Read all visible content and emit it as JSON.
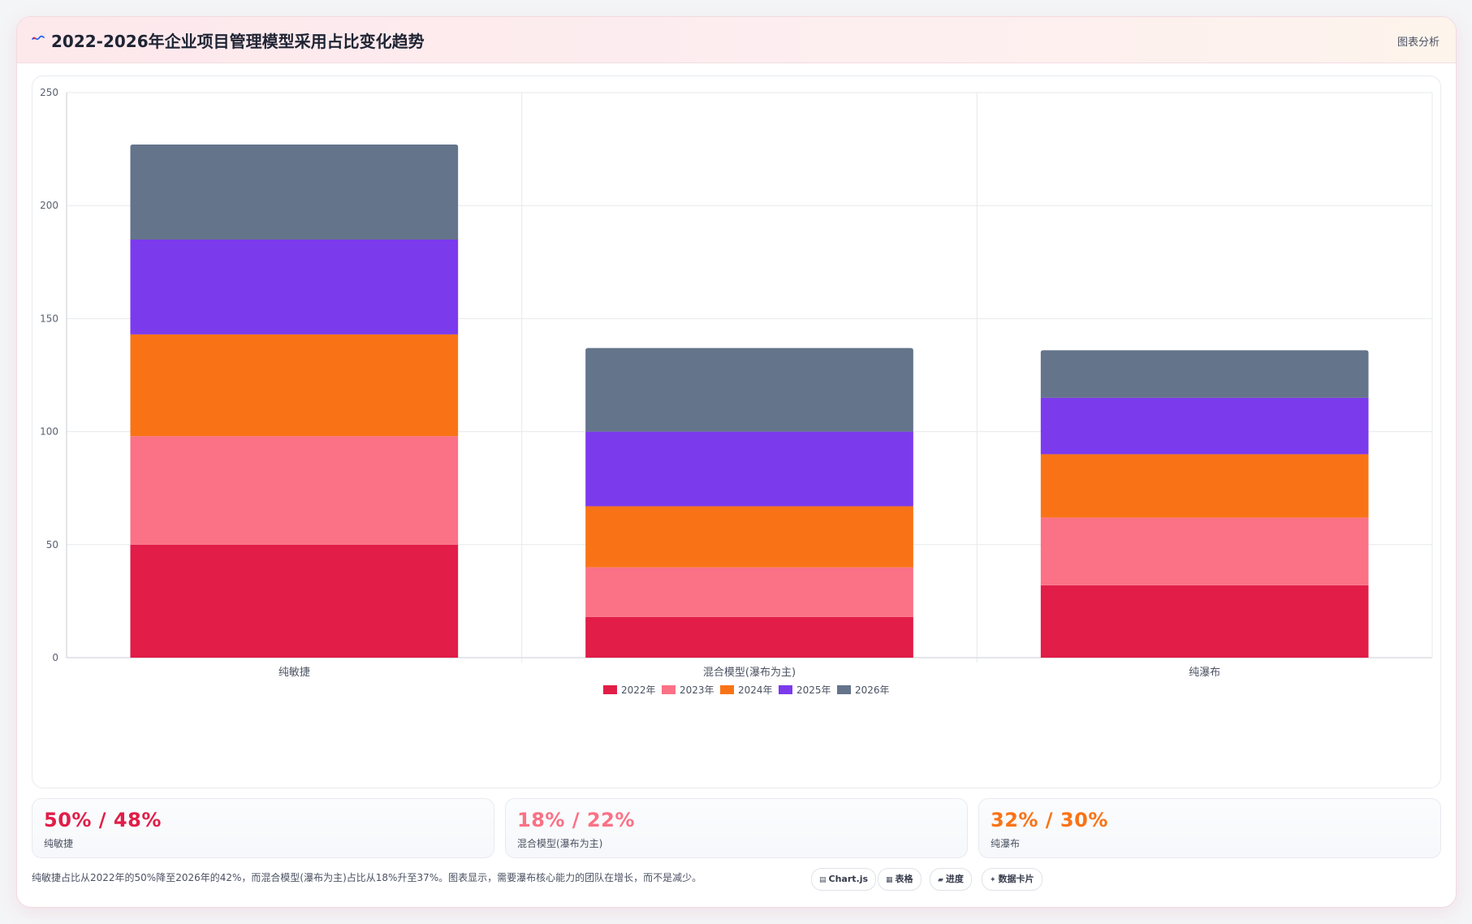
{
  "header": {
    "title": "2022-2026年企业项目管理模型采用占比变化趋势",
    "action_label": "图表分析",
    "icon": "chart-wave-icon"
  },
  "chart_data": {
    "type": "bar",
    "stacked": true,
    "title": "",
    "xlabel": "",
    "ylabel": "",
    "categories": [
      "纯敏捷",
      "混合模型(瀑布为主)",
      "纯瀑布"
    ],
    "ylim": [
      0,
      250
    ],
    "yticks": [
      0,
      50,
      100,
      150,
      200,
      250
    ],
    "grid": true,
    "legend_position": "bottom",
    "series": [
      {
        "name": "2022年",
        "color": "#e11d48",
        "values": [
          50,
          18,
          32
        ]
      },
      {
        "name": "2023年",
        "color": "#fb7185",
        "values": [
          48,
          22,
          30
        ]
      },
      {
        "name": "2024年",
        "color": "#f97316",
        "values": [
          45,
          27,
          28
        ]
      },
      {
        "name": "2025年",
        "color": "#7c3aed",
        "values": [
          42,
          33,
          25
        ]
      },
      {
        "name": "2026年",
        "color": "#64748b",
        "values": [
          42,
          37,
          21
        ]
      }
    ]
  },
  "stats": [
    {
      "value": "50% / 48%",
      "label": "纯敏捷",
      "color": "#e11d48"
    },
    {
      "value": "18% / 22%",
      "label": "混合模型(瀑布为主)",
      "color": "#fb7185"
    },
    {
      "value": "32% / 30%",
      "label": "纯瀑布",
      "color": "#f97316"
    }
  ],
  "footer": {
    "note": "纯敏捷占比从2022年的50%降至2026年的42%，而混合模型(瀑布为主)占比从18%升至37%。图表显示，需要瀑布核心能力的团队在增长，而不是减少。",
    "tags": [
      {
        "icon": "▤",
        "label": "Chart.js"
      },
      {
        "icon": "▦",
        "label": "表格"
      },
      {
        "icon": "▰",
        "label": "进度"
      },
      {
        "icon": "✦",
        "label": "数据卡片"
      }
    ]
  }
}
